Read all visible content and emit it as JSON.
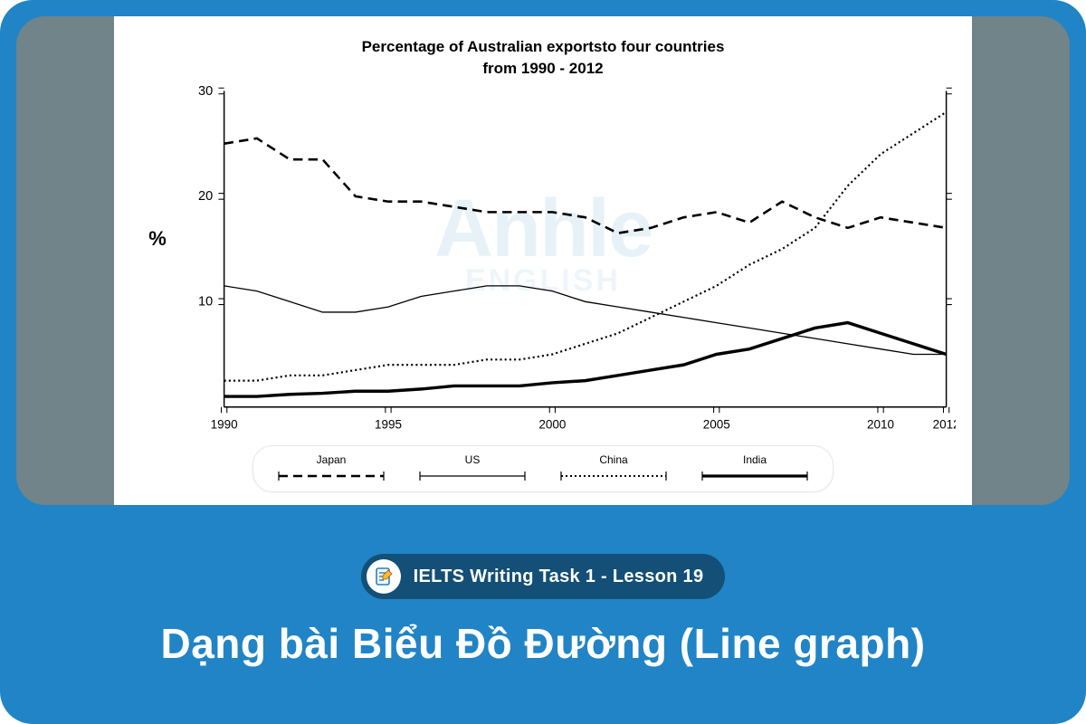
{
  "colors": {
    "card_bg": "#2084c6",
    "side_strip": "#70848a",
    "chart_bg": "#ffffff",
    "axis": "#000000",
    "watermark_top": "#2084c6",
    "watermark_bottom": "#2084c6",
    "badge_bg": "#134f76",
    "title_text": "#ffffff",
    "legend_border": "#e5e7eb"
  },
  "chart": {
    "type": "line",
    "title_line1": "Percentage of Australian exportsto four countries",
    "title_line2": "from 1990 - 2012",
    "title_fontsize": 17,
    "ylabel": "%",
    "watermark_top": "Anhle",
    "watermark_bottom": "ENGLISH",
    "xlim": [
      1990,
      2012
    ],
    "ylim": [
      0,
      30
    ],
    "xticks": [
      1990,
      1995,
      2000,
      2005,
      2010,
      2012
    ],
    "yticks": [
      10,
      20,
      30
    ],
    "xtick_labels": [
      "1990",
      "1995",
      "2000",
      "2005",
      "2010",
      "2012"
    ],
    "ytick_labels": [
      "10",
      "20",
      "30"
    ],
    "brace_tick_half": 3,
    "series": [
      {
        "name": "Japan",
        "dash": "10,6",
        "width": 2.4,
        "color": "#000000",
        "points": [
          [
            1990,
            25.0
          ],
          [
            1991,
            25.5
          ],
          [
            1992,
            23.5
          ],
          [
            1993,
            23.5
          ],
          [
            1994,
            20.0
          ],
          [
            1995,
            19.5
          ],
          [
            1996,
            19.5
          ],
          [
            1997,
            19.0
          ],
          [
            1998,
            18.5
          ],
          [
            1999,
            18.5
          ],
          [
            2000,
            18.5
          ],
          [
            2001,
            18.0
          ],
          [
            2002,
            16.5
          ],
          [
            2003,
            17.0
          ],
          [
            2004,
            18.0
          ],
          [
            2005,
            18.5
          ],
          [
            2006,
            17.5
          ],
          [
            2007,
            19.5
          ],
          [
            2008,
            18.0
          ],
          [
            2009,
            17.0
          ],
          [
            2010,
            18.0
          ],
          [
            2011,
            17.5
          ],
          [
            2012,
            17.0
          ]
        ]
      },
      {
        "name": "US",
        "dash": "",
        "width": 1.2,
        "color": "#000000",
        "points": [
          [
            1990,
            11.5
          ],
          [
            1991,
            11.0
          ],
          [
            1992,
            10.0
          ],
          [
            1993,
            9.0
          ],
          [
            1994,
            9.0
          ],
          [
            1995,
            9.5
          ],
          [
            1996,
            10.5
          ],
          [
            1997,
            11.0
          ],
          [
            1998,
            11.5
          ],
          [
            1999,
            11.5
          ],
          [
            2000,
            11.0
          ],
          [
            2001,
            10.0
          ],
          [
            2002,
            9.5
          ],
          [
            2003,
            9.0
          ],
          [
            2004,
            8.5
          ],
          [
            2005,
            8.0
          ],
          [
            2006,
            7.5
          ],
          [
            2007,
            7.0
          ],
          [
            2008,
            6.5
          ],
          [
            2009,
            6.0
          ],
          [
            2010,
            5.5
          ],
          [
            2011,
            5.0
          ],
          [
            2012,
            5.0
          ]
        ]
      },
      {
        "name": "China",
        "dash": "2,3",
        "width": 2.0,
        "color": "#000000",
        "points": [
          [
            1990,
            2.5
          ],
          [
            1991,
            2.5
          ],
          [
            1992,
            3.0
          ],
          [
            1993,
            3.0
          ],
          [
            1994,
            3.5
          ],
          [
            1995,
            4.0
          ],
          [
            1996,
            4.0
          ],
          [
            1997,
            4.0
          ],
          [
            1998,
            4.5
          ],
          [
            1999,
            4.5
          ],
          [
            2000,
            5.0
          ],
          [
            2001,
            6.0
          ],
          [
            2002,
            7.0
          ],
          [
            2003,
            8.5
          ],
          [
            2004,
            10.0
          ],
          [
            2005,
            11.5
          ],
          [
            2006,
            13.5
          ],
          [
            2007,
            15.0
          ],
          [
            2008,
            17.0
          ],
          [
            2009,
            21.0
          ],
          [
            2010,
            24.0
          ],
          [
            2011,
            26.0
          ],
          [
            2012,
            28.0
          ]
        ]
      },
      {
        "name": "India",
        "dash": "",
        "width": 3.2,
        "color": "#000000",
        "points": [
          [
            1990,
            1.0
          ],
          [
            1991,
            1.0
          ],
          [
            1992,
            1.2
          ],
          [
            1993,
            1.3
          ],
          [
            1994,
            1.5
          ],
          [
            1995,
            1.5
          ],
          [
            1996,
            1.7
          ],
          [
            1997,
            2.0
          ],
          [
            1998,
            2.0
          ],
          [
            1999,
            2.0
          ],
          [
            2000,
            2.3
          ],
          [
            2001,
            2.5
          ],
          [
            2002,
            3.0
          ],
          [
            2003,
            3.5
          ],
          [
            2004,
            4.0
          ],
          [
            2005,
            5.0
          ],
          [
            2006,
            5.5
          ],
          [
            2007,
            6.5
          ],
          [
            2008,
            7.5
          ],
          [
            2009,
            8.0
          ],
          [
            2010,
            7.0
          ],
          [
            2011,
            6.0
          ],
          [
            2012,
            5.0
          ]
        ]
      }
    ],
    "legend": [
      "Japan",
      "US",
      "China",
      "India"
    ]
  },
  "badge": {
    "text": "IELTS Writing Task 1 - Lesson 19"
  },
  "main_title": "Dạng bài Biểu Đồ Đường (Line graph)"
}
